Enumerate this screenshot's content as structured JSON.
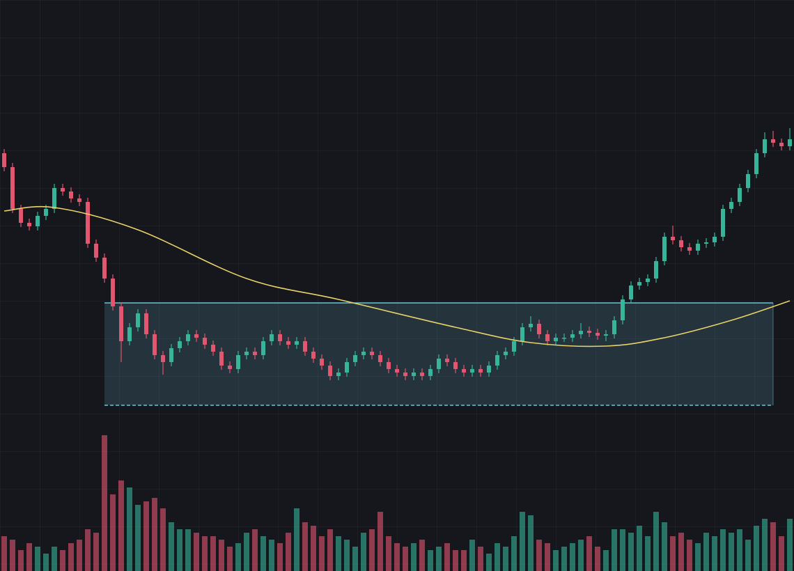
{
  "chart_data": {
    "type": "candlestick",
    "up_color": "#36b59b",
    "down_color": "#e2566f",
    "ylim": [
      0,
      820
    ],
    "volume_lim": [
      0,
      200
    ],
    "open": [
      600,
      580,
      520,
      500,
      495,
      510,
      520,
      550,
      545,
      535,
      530,
      470,
      450,
      420,
      380,
      330,
      350,
      370,
      340,
      310,
      300,
      320,
      330,
      340,
      335,
      325,
      315,
      295,
      290,
      310,
      315,
      310,
      330,
      340,
      330,
      325,
      330,
      315,
      305,
      295,
      280,
      285,
      300,
      310,
      315,
      310,
      300,
      290,
      285,
      280,
      285,
      280,
      290,
      305,
      300,
      290,
      285,
      290,
      285,
      295,
      310,
      315,
      330,
      350,
      355,
      340,
      330,
      335,
      335,
      340,
      345,
      342,
      338,
      340,
      360,
      390,
      410,
      415,
      420,
      445,
      480,
      475,
      465,
      460,
      470,
      472,
      480,
      520,
      530,
      550,
      570,
      600,
      620,
      615,
      610
    ],
    "high": [
      606,
      586,
      526,
      506,
      516,
      526,
      556,
      556,
      551,
      541,
      536,
      476,
      456,
      426,
      386,
      356,
      376,
      376,
      346,
      316,
      326,
      336,
      346,
      346,
      341,
      331,
      321,
      301,
      316,
      321,
      321,
      336,
      346,
      346,
      336,
      336,
      336,
      321,
      311,
      301,
      291,
      306,
      316,
      321,
      321,
      316,
      306,
      296,
      291,
      291,
      291,
      296,
      311,
      311,
      306,
      296,
      296,
      296,
      301,
      316,
      321,
      336,
      356,
      366,
      361,
      346,
      341,
      341,
      346,
      356,
      351,
      348,
      346,
      366,
      396,
      416,
      421,
      426,
      451,
      486,
      496,
      481,
      471,
      476,
      478,
      486,
      526,
      536,
      556,
      576,
      606,
      630,
      632,
      621,
      636
    ],
    "low": [
      574,
      514,
      494,
      489,
      489,
      504,
      514,
      539,
      529,
      524,
      464,
      444,
      414,
      374,
      300,
      324,
      344,
      334,
      304,
      282,
      294,
      314,
      324,
      329,
      319,
      309,
      289,
      284,
      284,
      304,
      304,
      304,
      324,
      324,
      319,
      319,
      309,
      299,
      289,
      274,
      274,
      279,
      294,
      304,
      304,
      294,
      284,
      279,
      274,
      274,
      274,
      274,
      284,
      294,
      284,
      279,
      279,
      279,
      279,
      289,
      304,
      309,
      324,
      344,
      334,
      324,
      324,
      329,
      329,
      334,
      336,
      332,
      330,
      334,
      354,
      384,
      404,
      409,
      414,
      439,
      469,
      459,
      454,
      454,
      464,
      466,
      474,
      514,
      524,
      544,
      564,
      594,
      609,
      604,
      604
    ],
    "close": [
      580,
      520,
      500,
      495,
      510,
      520,
      550,
      545,
      535,
      530,
      470,
      450,
      420,
      380,
      330,
      350,
      370,
      340,
      310,
      300,
      320,
      330,
      340,
      335,
      325,
      315,
      295,
      290,
      310,
      315,
      310,
      330,
      340,
      330,
      325,
      330,
      315,
      305,
      295,
      280,
      285,
      300,
      310,
      315,
      310,
      300,
      290,
      285,
      280,
      285,
      280,
      290,
      305,
      300,
      290,
      285,
      290,
      285,
      295,
      310,
      315,
      330,
      350,
      355,
      340,
      330,
      335,
      335,
      340,
      345,
      342,
      338,
      340,
      360,
      390,
      410,
      415,
      420,
      445,
      480,
      475,
      465,
      460,
      470,
      472,
      480,
      520,
      530,
      550,
      570,
      600,
      620,
      615,
      610,
      620
    ],
    "volume": [
      50,
      45,
      30,
      40,
      35,
      25,
      35,
      30,
      40,
      45,
      60,
      55,
      195,
      110,
      130,
      120,
      95,
      100,
      105,
      90,
      70,
      60,
      60,
      55,
      50,
      50,
      45,
      35,
      40,
      55,
      60,
      50,
      45,
      40,
      55,
      90,
      70,
      65,
      50,
      60,
      50,
      45,
      35,
      55,
      60,
      85,
      50,
      40,
      35,
      40,
      45,
      30,
      35,
      40,
      30,
      30,
      45,
      35,
      25,
      40,
      35,
      50,
      85,
      80,
      45,
      40,
      30,
      35,
      40,
      45,
      50,
      35,
      30,
      60,
      60,
      55,
      65,
      50,
      85,
      70,
      50,
      55,
      45,
      40,
      55,
      50,
      60,
      55,
      60,
      45,
      65,
      75,
      70,
      50,
      75
    ],
    "moving_average": {
      "color": "#e8d36a",
      "x": [
        0,
        6,
        16,
        29,
        40,
        54,
        63,
        72,
        79,
        87,
        94
      ],
      "values": [
        517,
        522,
        490,
        420,
        390,
        350,
        328,
        323,
        335,
        360,
        388
      ]
    },
    "zone": {
      "color": "#6cc6d6",
      "x_start": 12,
      "x_end": 92,
      "top": 385,
      "bottom": 238
    }
  }
}
